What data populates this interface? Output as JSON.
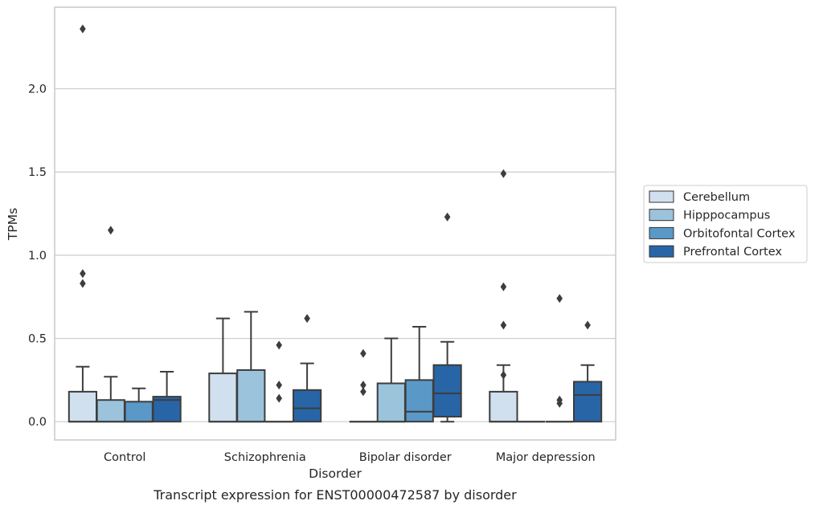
{
  "chart_data": {
    "type": "box",
    "title": "Transcript expression for ENST00000472587 by disorder",
    "xlabel": "Disorder",
    "ylabel": "TPMs",
    "ylim": [
      -0.11,
      2.49
    ],
    "yticks": [
      0.0,
      0.5,
      1.0,
      1.5,
      2.0
    ],
    "ytick_labels": [
      "0.0",
      "0.5",
      "1.0",
      "1.5",
      "2.0"
    ],
    "grid": "horizontal",
    "legend_position": "right",
    "categories": [
      "Control",
      "Schizophrenia",
      "Bipolar disorder",
      "Major depression"
    ],
    "series": [
      {
        "name": "Cerebellum",
        "color": "#d0e0ef",
        "boxes": [
          {
            "q1": 0.0,
            "median": 0.0,
            "q3": 0.18,
            "whisker_low": 0.0,
            "whisker_high": 0.33,
            "outliers": [
              2.36,
              0.89,
              0.83
            ]
          },
          {
            "q1": 0.0,
            "median": 0.0,
            "q3": 0.29,
            "whisker_low": 0.0,
            "whisker_high": 0.62,
            "outliers": []
          },
          {
            "q1": 0.0,
            "median": 0.0,
            "q3": 0.0,
            "whisker_low": 0.0,
            "whisker_high": 0.0,
            "outliers": [
              0.41,
              0.22,
              0.18
            ]
          },
          {
            "q1": 0.0,
            "median": 0.0,
            "q3": 0.18,
            "whisker_low": 0.0,
            "whisker_high": 0.34,
            "outliers": [
              1.49,
              0.81,
              0.58,
              0.28
            ]
          }
        ]
      },
      {
        "name": "Hipppocampus",
        "color": "#9bc3dc",
        "boxes": [
          {
            "q1": 0.0,
            "median": 0.0,
            "q3": 0.13,
            "whisker_low": 0.0,
            "whisker_high": 0.27,
            "outliers": [
              1.15
            ]
          },
          {
            "q1": 0.0,
            "median": 0.0,
            "q3": 0.31,
            "whisker_low": 0.0,
            "whisker_high": 0.66,
            "outliers": []
          },
          {
            "q1": 0.0,
            "median": 0.0,
            "q3": 0.23,
            "whisker_low": 0.0,
            "whisker_high": 0.5,
            "outliers": []
          },
          {
            "q1": 0.0,
            "median": 0.0,
            "q3": 0.0,
            "whisker_low": 0.0,
            "whisker_high": 0.0,
            "outliers": []
          }
        ]
      },
      {
        "name": "Orbitofontal Cortex",
        "color": "#5a99c7",
        "boxes": [
          {
            "q1": 0.0,
            "median": 0.0,
            "q3": 0.12,
            "whisker_low": 0.0,
            "whisker_high": 0.2,
            "outliers": []
          },
          {
            "q1": 0.0,
            "median": 0.0,
            "q3": 0.0,
            "whisker_low": 0.0,
            "whisker_high": 0.0,
            "outliers": [
              0.46,
              0.22,
              0.14
            ]
          },
          {
            "q1": 0.0,
            "median": 0.06,
            "q3": 0.25,
            "whisker_low": 0.0,
            "whisker_high": 0.57,
            "outliers": []
          },
          {
            "q1": 0.0,
            "median": 0.0,
            "q3": 0.0,
            "whisker_low": 0.0,
            "whisker_high": 0.0,
            "outliers": [
              0.74,
              0.13,
              0.11
            ]
          }
        ]
      },
      {
        "name": "Prefrontal Cortex",
        "color": "#2865a6",
        "boxes": [
          {
            "q1": 0.0,
            "median": 0.13,
            "q3": 0.15,
            "whisker_low": 0.0,
            "whisker_high": 0.3,
            "outliers": []
          },
          {
            "q1": 0.0,
            "median": 0.08,
            "q3": 0.19,
            "whisker_low": 0.0,
            "whisker_high": 0.35,
            "outliers": [
              0.62
            ]
          },
          {
            "q1": 0.03,
            "median": 0.17,
            "q3": 0.34,
            "whisker_low": 0.0,
            "whisker_high": 0.48,
            "outliers": [
              1.23
            ]
          },
          {
            "q1": 0.0,
            "median": 0.16,
            "q3": 0.24,
            "whisker_low": 0.0,
            "whisker_high": 0.34,
            "outliers": [
              0.58
            ]
          }
        ]
      }
    ]
  }
}
